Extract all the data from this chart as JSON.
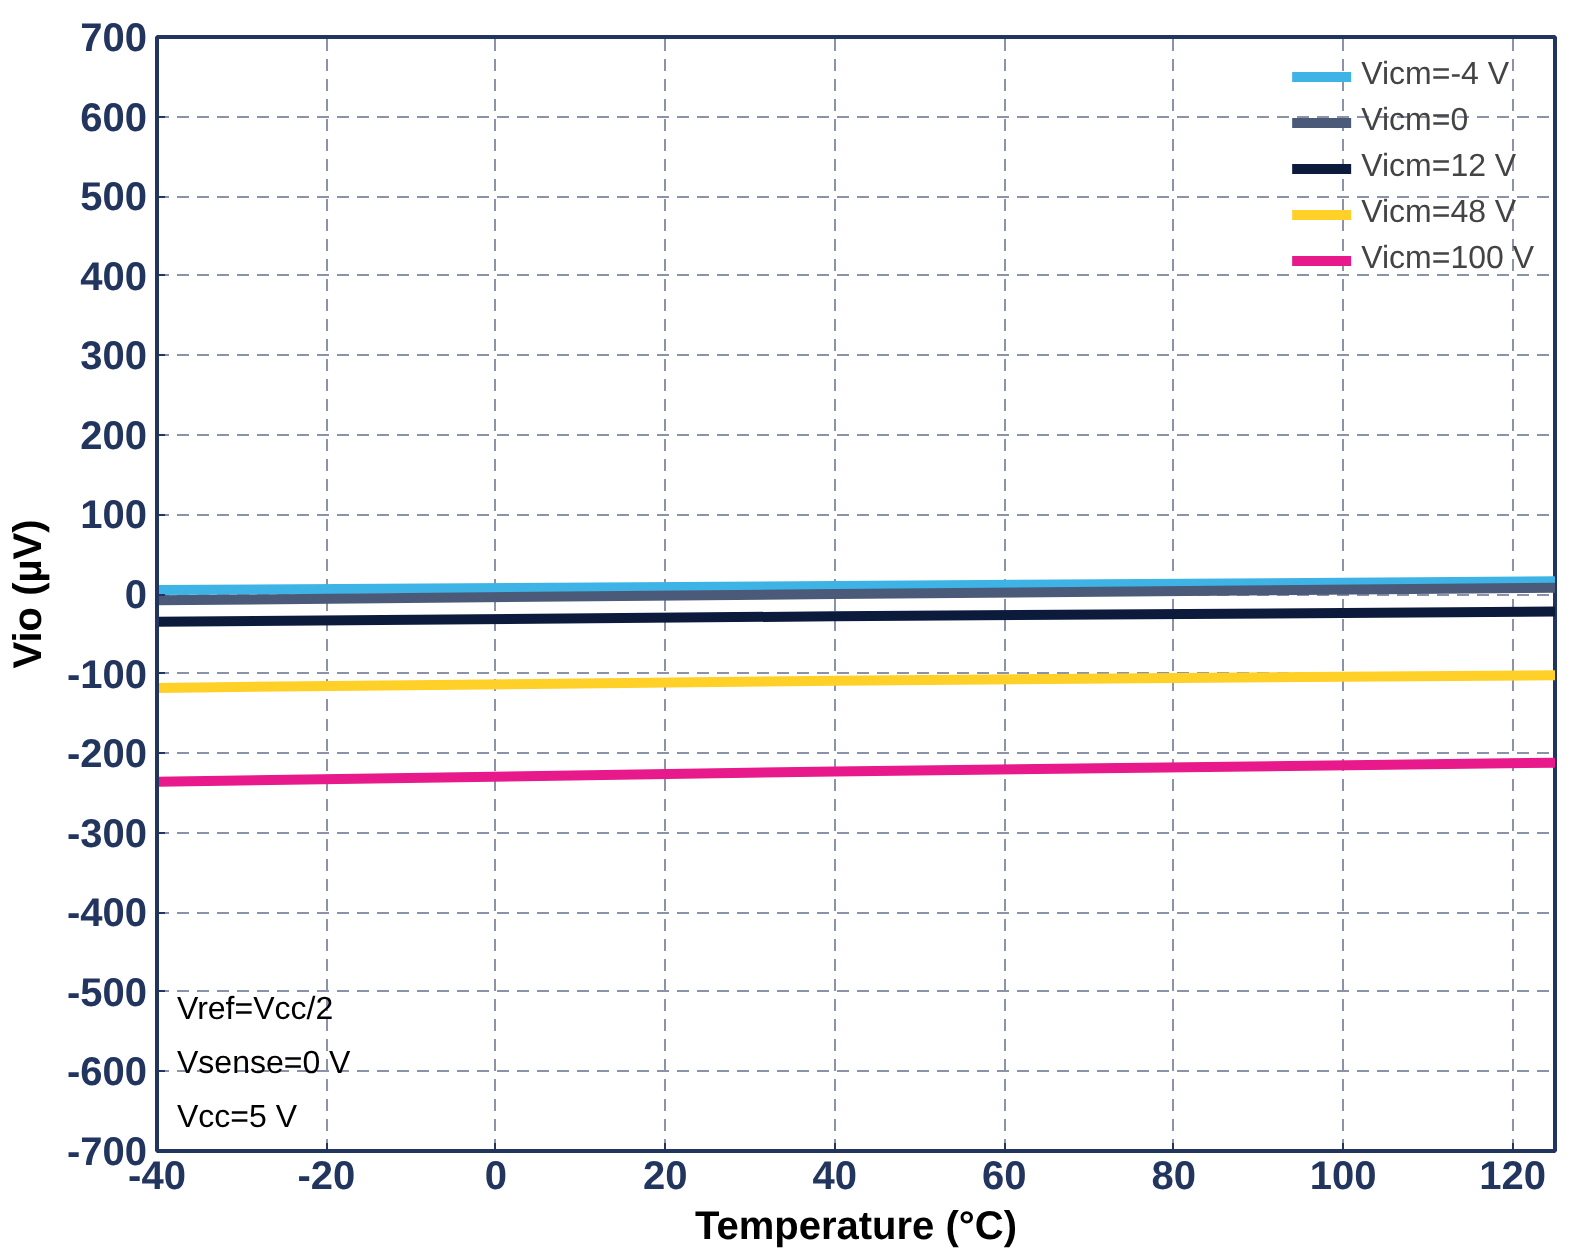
{
  "chart_data": {
    "type": "line",
    "xlabel": "Temperature (°C)",
    "ylabel": "Vio (µV)",
    "x": [
      -40,
      40,
      125
    ],
    "series": [
      {
        "name": "Vicm=-4 V",
        "color": "#3db4e5",
        "values": [
          5,
          10,
          16
        ]
      },
      {
        "name": "Vicm=0",
        "color": "#4a5a78",
        "values": [
          -8,
          0,
          8
        ]
      },
      {
        "name": "Vicm=12 V",
        "color": "#0c1a3c",
        "values": [
          -35,
          -28,
          -22
        ]
      },
      {
        "name": "Vicm=48 V",
        "color": "#ffd028",
        "values": [
          -118,
          -109,
          -102
        ]
      },
      {
        "name": "Vicm=100 V",
        "color": "#e8198b",
        "values": [
          -236,
          -223,
          -212
        ]
      }
    ],
    "xlim": [
      -40,
      125
    ],
    "xticks": [
      -40,
      -20,
      0,
      20,
      40,
      60,
      80,
      100,
      120
    ],
    "ylim": [
      -700,
      700
    ],
    "yticks": [
      -700,
      -600,
      -500,
      -400,
      -300,
      -200,
      -100,
      0,
      100,
      200,
      300,
      400,
      500,
      600,
      700
    ],
    "grid": true,
    "legend": "top right",
    "marker": "none",
    "line_style": "solid",
    "annotations": [
      "Vref=Vcc/2",
      "Vsense=0 V",
      "Vcc=5 V"
    ]
  }
}
